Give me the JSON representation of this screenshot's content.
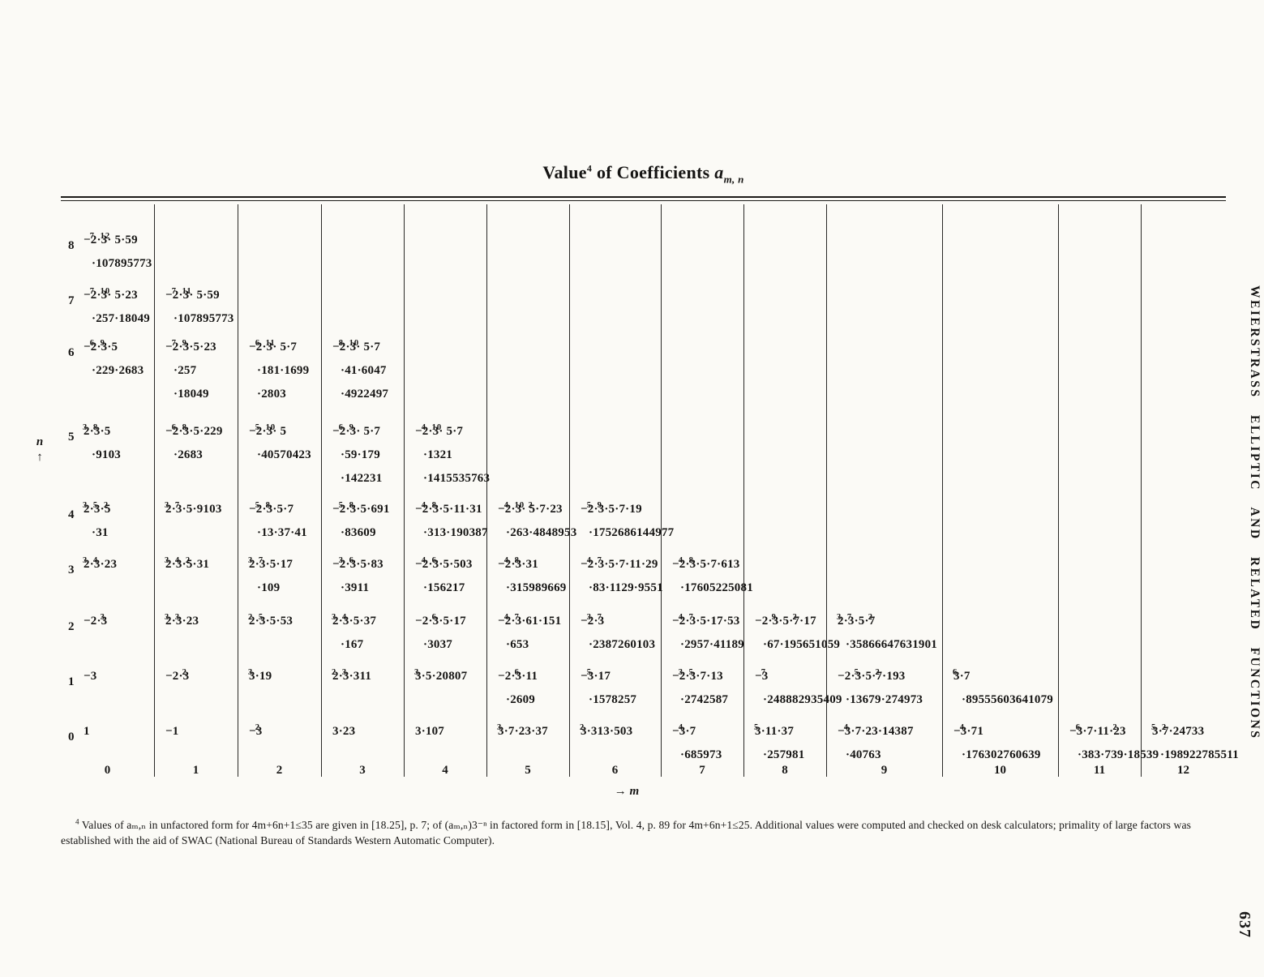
{
  "title": {
    "word": "Value",
    "footnote_ref": "4",
    "rest": "of Coefficients",
    "symbol": "a",
    "symbol_subscript": "m, n"
  },
  "axis": {
    "row_axis_var": "n",
    "row_axis_arrow": "↑",
    "col_axis_label": "→ m",
    "col_labels": [
      "0",
      "1",
      "2",
      "3",
      "4",
      "5",
      "6",
      "7",
      "8",
      "9",
      "10",
      "11",
      "12"
    ],
    "row_labels": [
      "8",
      "7",
      "6",
      "5",
      "4",
      "3",
      "2",
      "1",
      "0"
    ]
  },
  "table": {
    "rows": [
      {
        "n": "8",
        "cells": [
          {
            "m": 0,
            "lines": [
              "−2^7·3^12· 5·59",
              "·107895773"
            ]
          }
        ]
      },
      {
        "n": "7",
        "cells": [
          {
            "m": 0,
            "lines": [
              "−2^7·3^10· 5·23",
              "·257·18049"
            ]
          },
          {
            "m": 1,
            "lines": [
              "−2^7·3^11· 5·59",
              "·107895773"
            ]
          }
        ]
      },
      {
        "n": "6",
        "cells": [
          {
            "m": 0,
            "lines": [
              "−2^6·3^9·5",
              "·229·2683"
            ]
          },
          {
            "m": 1,
            "lines": [
              "−2^7·3^9·5·23",
              "·257",
              "·18049"
            ]
          },
          {
            "m": 2,
            "lines": [
              "−2^6·3^11· 5·7",
              "·181·1699",
              "·2803"
            ]
          },
          {
            "m": 3,
            "lines": [
              "−2^8·3^10· 5·7",
              "·41·6047",
              "·4922497"
            ]
          }
        ]
      },
      {
        "n": "5",
        "cells": [
          {
            "m": 0,
            "lines": [
              "2^3·3^8·5",
              "·9103"
            ]
          },
          {
            "m": 1,
            "lines": [
              "−2^6·3^8·5·229",
              "·2683"
            ]
          },
          {
            "m": 2,
            "lines": [
              "−2^5·3^10· 5",
              "·40570423"
            ]
          },
          {
            "m": 3,
            "lines": [
              "−2^6·3^9· 5·7",
              "·59·179",
              "·142231"
            ]
          },
          {
            "m": 4,
            "lines": [
              "−2^4·3^10· 5·7",
              "·1321",
              "·1415535763"
            ]
          }
        ]
      },
      {
        "n": "4",
        "cells": [
          {
            "m": 0,
            "lines": [
              "2^3·3^5·5^2",
              "·31"
            ]
          },
          {
            "m": 1,
            "lines": [
              "2^3·3^7·5·9103"
            ]
          },
          {
            "m": 2,
            "lines": [
              "−2^5·3^8·5·7",
              "·13·37·41"
            ]
          },
          {
            "m": 3,
            "lines": [
              "−2^5·3^8·5·691",
              "·83609"
            ]
          },
          {
            "m": 4,
            "lines": [
              "−2^4·3^8·5·11·31",
              "·313·190387"
            ]
          },
          {
            "m": 5,
            "lines": [
              "−2^4·3^10· 5^2·7·23",
              "·263·4848953"
            ]
          },
          {
            "m": 6,
            "lines": [
              "−2^5·3^9·5·7·19",
              "·1752686144977"
            ]
          }
        ]
      },
      {
        "n": "3",
        "cells": [
          {
            "m": 0,
            "lines": [
              "2^3·3^4·23"
            ]
          },
          {
            "m": 1,
            "lines": [
              "2^3·3^4·5^2·31"
            ]
          },
          {
            "m": 2,
            "lines": [
              "2^3·3^7·5·17",
              "·109"
            ]
          },
          {
            "m": 3,
            "lines": [
              "−2^3·3^6·5·83",
              "·3911"
            ]
          },
          {
            "m": 4,
            "lines": [
              "−2^4·3^6·5·503",
              "·156217"
            ]
          },
          {
            "m": 5,
            "lines": [
              "−2^4·3^8·31",
              "·315989669"
            ]
          },
          {
            "m": 6,
            "lines": [
              "−2^4·3^7·5·7·11·29",
              "·83·1129·9551"
            ]
          },
          {
            "m": 7,
            "lines": [
              "−2^4·3^8·5·7·613",
              "·17605225081"
            ]
          }
        ]
      },
      {
        "n": "2",
        "cells": [
          {
            "m": 0,
            "lines": [
              "−2·3^3"
            ]
          },
          {
            "m": 1,
            "lines": [
              "2^3·3^3·23"
            ]
          },
          {
            "m": 2,
            "lines": [
              "2^2·3^5·5·53"
            ]
          },
          {
            "m": 3,
            "lines": [
              "2^3·3^4·5·37",
              "·167"
            ]
          },
          {
            "m": 4,
            "lines": [
              "−2·3^6·5·17",
              "·3037"
            ]
          },
          {
            "m": 5,
            "lines": [
              "−2^4·3^7·61·151",
              "·653"
            ]
          },
          {
            "m": 6,
            "lines": [
              "−2^3·3^7",
              "·2387260103"
            ]
          },
          {
            "m": 7,
            "lines": [
              "−2^4·3^7·5·17·53",
              "·2957·41189"
            ]
          },
          {
            "m": 8,
            "lines": [
              "−2·3^9·5·7^2·17",
              "·67·195651059"
            ]
          },
          {
            "m": 9,
            "lines": [
              "2^3·3^7·5·7^2",
              "·35866647631901"
            ]
          }
        ]
      },
      {
        "n": "1",
        "cells": [
          {
            "m": 0,
            "lines": [
              "−3"
            ]
          },
          {
            "m": 1,
            "lines": [
              "−2·3^2"
            ]
          },
          {
            "m": 2,
            "lines": [
              "3^3·19"
            ]
          },
          {
            "m": 3,
            "lines": [
              "2^2·3^3·311"
            ]
          },
          {
            "m": 4,
            "lines": [
              "3^3·5·20807"
            ]
          },
          {
            "m": 5,
            "lines": [
              "−2·3^6·11",
              "·2609"
            ]
          },
          {
            "m": 6,
            "lines": [
              "−3^5·17",
              "·1578257"
            ]
          },
          {
            "m": 7,
            "lines": [
              "−2^3·3^5·7·13",
              "·2742587"
            ]
          },
          {
            "m": 8,
            "lines": [
              "−3^7",
              "·248882935409"
            ]
          },
          {
            "m": 9,
            "lines": [
              "−2·3^5·5·7^2·193",
              "·13679·274973"
            ]
          },
          {
            "m": 10,
            "lines": [
              "3^6·7",
              "·89555603641079"
            ]
          }
        ]
      },
      {
        "n": "0",
        "cells": [
          {
            "m": 0,
            "lines": [
              "1"
            ]
          },
          {
            "m": 1,
            "lines": [
              "−1"
            ]
          },
          {
            "m": 2,
            "lines": [
              "−3^2"
            ]
          },
          {
            "m": 3,
            "lines": [
              "3·23"
            ]
          },
          {
            "m": 4,
            "lines": [
              "3·107"
            ]
          },
          {
            "m": 5,
            "lines": [
              "3^3·7·23·37"
            ]
          },
          {
            "m": 6,
            "lines": [
              "3^2·313·503"
            ]
          },
          {
            "m": 7,
            "lines": [
              "−3^4·7",
              "·685973"
            ]
          },
          {
            "m": 8,
            "lines": [
              "3^5·11·37",
              "·257981"
            ]
          },
          {
            "m": 9,
            "lines": [
              "−3^4·7·23·14387",
              "·40763"
            ]
          },
          {
            "m": 10,
            "lines": [
              "−3^4·71",
              "·176302760639"
            ]
          },
          {
            "m": 11,
            "lines": [
              "−3^6·7·11·23^2",
              "·383·739·18539"
            ]
          },
          {
            "m": 12,
            "lines": [
              "3^5·7^2·24733",
              "·198922785511"
            ]
          }
        ]
      }
    ]
  },
  "footnote": {
    "mark": "4",
    "text": "Values of aₘ,ₙ in unfactored form for 4m+6n+1≤35 are given in [18.25], p. 7; of (aₘ,ₙ)3⁻ⁿ in factored form in [18.15], Vol. 4, p. 89 for 4m+6n+1≤25.  Additional values were computed and checked on desk calculators; primality of large factors was established with the aid of SWAC (National Bureau of Standards Western Automatic Computer)."
  },
  "margin": {
    "running_head": "WEIERSTRASS ELLIPTIC AND RELATED FUNCTIONS",
    "page_number": "637"
  }
}
